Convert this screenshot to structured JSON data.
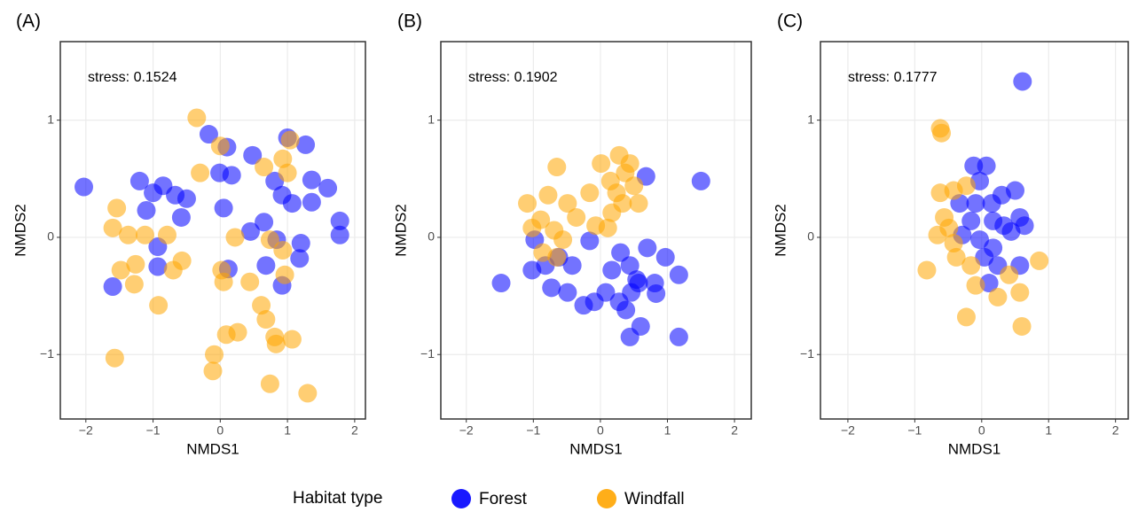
{
  "chart_data": [
    {
      "type": "scatter",
      "title": "(A)",
      "annotation": "stress: 0.1524",
      "xlabel": "NMDS1",
      "ylabel": "NMDS2",
      "xlim": [
        -2.38,
        2.16
      ],
      "ylim": [
        -1.55,
        1.67
      ],
      "xticks": [
        {
          "value": -2,
          "label": "−2"
        },
        {
          "value": -1,
          "label": "−1"
        },
        0,
        1,
        2
      ],
      "yticks": [
        {
          "value": -1,
          "label": "−1"
        },
        0,
        1
      ],
      "grid": true,
      "series": [
        {
          "name": "Forest",
          "color": "#0000ff",
          "x": [
            -2.03,
            -1.6,
            -1.2,
            -1.1,
            -1.0,
            -0.85,
            -0.67,
            -0.58,
            -0.5,
            -0.93,
            -0.93,
            -0.17,
            0.1,
            -0.01,
            0.17,
            0.05,
            0.12,
            0.45,
            0.48,
            0.65,
            0.81,
            0.92,
            1.0,
            1.07,
            1.27,
            1.36,
            1.36,
            1.6,
            1.78,
            1.78,
            1.2,
            1.18,
            0.92,
            0.84,
            0.68
          ],
          "values": [
            0.43,
            -0.42,
            0.48,
            0.23,
            0.38,
            0.44,
            0.36,
            0.17,
            0.33,
            -0.08,
            -0.25,
            0.88,
            0.77,
            0.55,
            0.53,
            0.25,
            -0.27,
            0.05,
            0.7,
            0.13,
            0.48,
            0.36,
            0.85,
            0.29,
            0.79,
            0.49,
            0.3,
            0.42,
            0.14,
            0.02,
            -0.05,
            -0.18,
            -0.41,
            -0.02,
            -0.24
          ]
        },
        {
          "name": "Windfall",
          "color": "#ffa500",
          "x": [
            -1.57,
            -1.54,
            -1.6,
            -1.37,
            -1.48,
            -1.28,
            -1.26,
            -1.12,
            -0.79,
            -0.92,
            -0.7,
            -0.57,
            -0.35,
            -0.3,
            0.0,
            -0.09,
            0.02,
            0.05,
            0.22,
            0.09,
            0.26,
            0.44,
            0.61,
            0.65,
            0.68,
            0.74,
            0.81,
            0.74,
            0.83,
            0.93,
            1.0,
            1.04,
            1.07,
            1.3,
            0.93,
            0.96,
            -0.11
          ],
          "values": [
            -1.03,
            0.25,
            0.08,
            0.02,
            -0.28,
            -0.4,
            -0.23,
            0.02,
            0.02,
            -0.58,
            -0.28,
            -0.2,
            1.02,
            0.55,
            0.78,
            -1.0,
            -0.28,
            -0.38,
            0.0,
            -0.83,
            -0.81,
            -0.38,
            -0.58,
            0.6,
            -0.7,
            -0.02,
            -0.85,
            -1.25,
            -0.91,
            0.67,
            0.55,
            0.83,
            -0.87,
            -1.33,
            -0.11,
            -0.32,
            -1.14
          ]
        }
      ]
    },
    {
      "type": "scatter",
      "title": "(B)",
      "annotation": "stress: 0.1902",
      "xlabel": "NMDS1",
      "ylabel": "NMDS2",
      "xlim": [
        -2.38,
        2.25
      ],
      "ylim": [
        -1.55,
        1.67
      ],
      "xticks": [
        {
          "value": -2,
          "label": "−2"
        },
        {
          "value": -1,
          "label": "−1"
        },
        0,
        1,
        2
      ],
      "yticks": [
        {
          "value": -1,
          "label": "−1"
        },
        0,
        1
      ],
      "grid": true,
      "series": [
        {
          "name": "Forest",
          "color": "#0000ff",
          "x": [
            1.5,
            -1.48,
            -0.98,
            -0.82,
            -0.73,
            -0.49,
            -0.25,
            -0.16,
            0.08,
            0.28,
            0.44,
            0.54,
            0.3,
            0.7,
            0.81,
            0.68,
            0.38,
            0.44,
            0.6,
            1.17,
            1.17,
            0.97,
            0.17,
            0.57,
            -0.42,
            -0.62,
            -1.02,
            -0.09,
            0.83,
            0.46
          ],
          "values": [
            0.48,
            -0.39,
            -0.02,
            -0.24,
            -0.43,
            -0.47,
            -0.58,
            -0.03,
            -0.47,
            -0.55,
            -0.24,
            -0.36,
            -0.13,
            -0.09,
            -0.39,
            0.52,
            -0.62,
            -0.85,
            -0.76,
            -0.85,
            -0.32,
            -0.17,
            -0.28,
            -0.39,
            -0.24,
            -0.17,
            -0.28,
            -0.55,
            -0.48,
            -0.47
          ]
        },
        {
          "name": "Windfall",
          "color": "#ffa500",
          "x": [
            -0.65,
            -0.78,
            -0.89,
            -0.69,
            -0.49,
            -0.36,
            -0.86,
            -0.65,
            -0.16,
            0.01,
            0.15,
            0.28,
            0.37,
            0.5,
            0.33,
            0.17,
            -0.07,
            0.11,
            0.57,
            0.44,
            0.24,
            -0.56,
            -1.09,
            -1.02
          ],
          "values": [
            0.6,
            0.36,
            0.15,
            0.06,
            0.29,
            0.17,
            -0.13,
            -0.17,
            0.38,
            0.63,
            0.48,
            0.7,
            0.55,
            0.44,
            0.29,
            0.21,
            0.1,
            0.08,
            0.29,
            0.63,
            0.38,
            -0.02,
            0.29,
            0.08
          ]
        }
      ]
    },
    {
      "type": "scatter",
      "title": "(C)",
      "annotation": "stress: 0.1777",
      "xlabel": "NMDS1",
      "ylabel": "NMDS2",
      "xlim": [
        -2.41,
        2.19
      ],
      "ylim": [
        -1.55,
        1.67
      ],
      "xticks": [
        {
          "value": -2,
          "label": "−2"
        },
        {
          "value": -1,
          "label": "−1"
        },
        0,
        1,
        2
      ],
      "yticks": [
        {
          "value": -1,
          "label": "−1"
        },
        0,
        1
      ],
      "grid": true,
      "series": [
        {
          "name": "Forest",
          "color": "#0000ff",
          "x": [
            0.61,
            -0.12,
            0.07,
            -0.33,
            -0.16,
            -0.03,
            0.17,
            0.3,
            0.5,
            0.57,
            0.64,
            0.44,
            -0.29,
            0.04,
            0.11,
            0.24,
            0.57,
            -0.03,
            0.17,
            0.33,
            0.15,
            -0.09
          ],
          "values": [
            1.33,
            0.61,
            0.61,
            0.29,
            0.14,
            -0.02,
            0.14,
            0.36,
            0.4,
            0.17,
            0.1,
            0.05,
            0.02,
            -0.17,
            -0.39,
            -0.24,
            -0.24,
            0.48,
            -0.09,
            0.1,
            0.29,
            0.29
          ]
        },
        {
          "name": "Windfall",
          "color": "#ffa500",
          "x": [
            -0.62,
            -0.6,
            -0.82,
            -0.66,
            -0.62,
            -0.56,
            -0.42,
            -0.23,
            0.6,
            0.86,
            0.24,
            -0.09,
            -0.42,
            -0.23,
            -0.38,
            0.41,
            0.57,
            -0.16,
            -0.49
          ],
          "values": [
            0.93,
            0.89,
            -0.28,
            0.02,
            0.38,
            0.17,
            -0.05,
            -0.68,
            -0.76,
            -0.2,
            -0.51,
            -0.41,
            0.4,
            0.44,
            -0.17,
            -0.32,
            -0.47,
            -0.24,
            0.08
          ]
        }
      ]
    }
  ],
  "legend": {
    "title": "Habitat type",
    "position": "bottom"
  }
}
